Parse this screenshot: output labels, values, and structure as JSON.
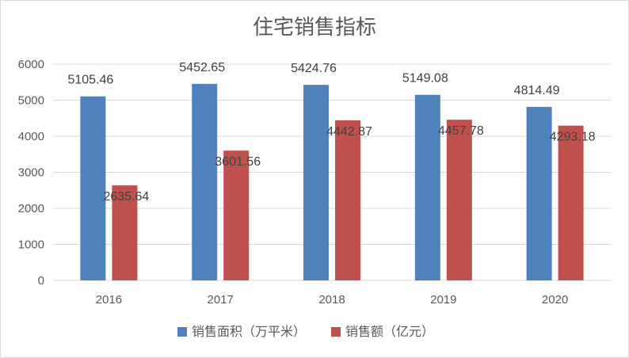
{
  "chart_data": {
    "type": "bar",
    "title": "住宅销售指标",
    "categories": [
      "2016",
      "2017",
      "2018",
      "2019",
      "2020"
    ],
    "series": [
      {
        "name": "销售面积（万平米）",
        "color": "#4f81bd",
        "values": [
          5105.46,
          5452.65,
          5424.76,
          5149.08,
          4814.49
        ]
      },
      {
        "name": "销售额（亿元）",
        "color": "#c0504d",
        "values": [
          2635.64,
          3601.56,
          4442.87,
          4457.78,
          4293.18
        ]
      }
    ],
    "ylim": [
      0,
      6000
    ],
    "yticks": [
      "0",
      "1000",
      "2000",
      "3000",
      "4000",
      "5000",
      "6000"
    ],
    "data_labels": [
      [
        "5105.46",
        "5452.65",
        "5424.76",
        "5149.08",
        "4814.49"
      ],
      [
        "2635.64",
        "3601.56",
        "4442.87",
        "4457.78",
        "4293.18"
      ]
    ],
    "grid": true,
    "legend_position": "bottom"
  }
}
